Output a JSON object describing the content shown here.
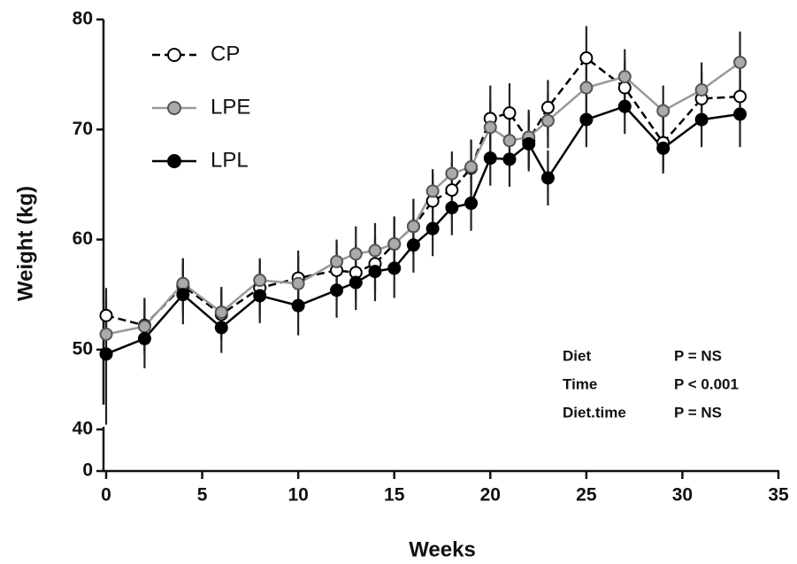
{
  "chart_data": {
    "type": "line",
    "xlabel": "Weeks",
    "ylabel": "Weight (kg)",
    "x": [
      0,
      2,
      4,
      6,
      8,
      10,
      12,
      13,
      14,
      15,
      16,
      17,
      18,
      19,
      20,
      21,
      22,
      23,
      25,
      27,
      29,
      31,
      33
    ],
    "xlim": [
      0,
      35
    ],
    "xticks": [
      0,
      5,
      10,
      15,
      20,
      25,
      30,
      35
    ],
    "ysegments": [
      {
        "ylim": [
          0,
          40
        ],
        "yticks": [
          0,
          40
        ]
      },
      {
        "ylim": [
          45,
          80
        ],
        "yticks": [
          50,
          60,
          70,
          80
        ]
      }
    ],
    "series": [
      {
        "name": "CP",
        "color": "#000000",
        "marker_fill": "#ffffff",
        "dashed": true,
        "values": [
          53.1,
          52.2,
          55.8,
          53.2,
          55.6,
          56.5,
          57.2,
          57.0,
          57.8,
          59.6,
          61.2,
          63.5,
          64.5,
          66.5,
          71.0,
          71.5,
          69.0,
          72.0,
          76.5,
          73.8,
          68.8,
          72.8,
          73.0
        ],
        "errors": [
          2.5,
          2.5,
          2.5,
          2.3,
          2.5,
          2.5,
          2.5,
          2.5,
          2.5,
          2.5,
          2.5,
          2.5,
          2.5,
          2.5,
          3.0,
          2.7,
          2.5,
          2.5,
          2.9,
          2.5,
          2.5,
          2.5,
          2.5
        ]
      },
      {
        "name": "LPE",
        "color": "#999999",
        "marker_fill": "#aaaaaa",
        "dashed": false,
        "values": [
          51.4,
          52.1,
          56.0,
          53.4,
          56.3,
          56.0,
          58.0,
          58.7,
          59.0,
          59.6,
          61.2,
          64.4,
          66.0,
          66.6,
          70.2,
          69.0,
          69.3,
          70.8,
          73.8,
          74.8,
          71.7,
          73.6,
          76.1
        ],
        "errors": [
          2.5,
          2.5,
          2.3,
          2.3,
          2.0,
          2.5,
          2.0,
          2.5,
          2.5,
          2.5,
          2.5,
          2.0,
          2.0,
          2.5,
          2.5,
          2.5,
          2.5,
          2.5,
          2.5,
          2.5,
          2.3,
          2.5,
          2.8
        ]
      },
      {
        "name": "LPL",
        "color": "#000000",
        "marker_fill": "#000000",
        "dashed": false,
        "values": [
          49.6,
          51.0,
          55.0,
          52.0,
          54.9,
          54.0,
          55.4,
          56.1,
          57.1,
          57.4,
          59.5,
          61.0,
          62.9,
          63.3,
          67.4,
          67.3,
          68.7,
          65.6,
          70.9,
          72.1,
          68.3,
          70.9,
          71.4
        ],
        "errors": [
          5.0,
          2.7,
          2.7,
          2.3,
          2.5,
          2.7,
          2.5,
          2.5,
          2.7,
          2.7,
          2.5,
          2.5,
          2.5,
          2.5,
          2.5,
          2.5,
          2.5,
          2.5,
          2.5,
          2.5,
          2.3,
          2.5,
          3.0
        ]
      }
    ],
    "annotations": [
      {
        "label": "Diet",
        "value": "P = NS"
      },
      {
        "label": "Time",
        "value": "P < 0.001"
      },
      {
        "label": "Diet.time",
        "value": "P = NS"
      }
    ]
  }
}
